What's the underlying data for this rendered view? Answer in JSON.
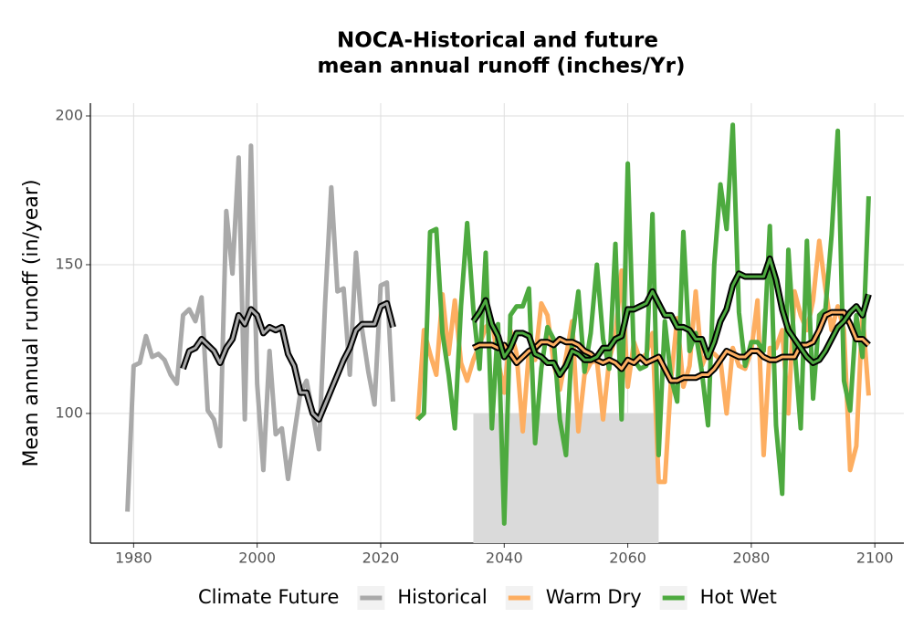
{
  "chart_data": {
    "type": "line",
    "title": [
      "NOCA-Historical and future",
      "mean annual runoff (inches/Yr)"
    ],
    "y_label": "Mean annual runoff (in/year)",
    "legend_title": "Climate Future",
    "legend_position": "bottom",
    "grid": true,
    "xlim": [
      1973,
      2104.7
    ],
    "ylim": [
      56.4,
      204.3
    ],
    "xticks": [
      1980,
      2000,
      2020,
      2040,
      2060,
      2080,
      2100
    ],
    "yticks": [
      100,
      150,
      200
    ],
    "band": {
      "from": 2035,
      "to": 2065,
      "top": 100,
      "color": "#dadada"
    },
    "series": [
      {
        "name": "Historical",
        "color": "#a9a9a9",
        "x": [
          1979,
          1980,
          1981,
          1982,
          1983,
          1984,
          1985,
          1986,
          1987,
          1988,
          1989,
          1990,
          1991,
          1992,
          1993,
          1994,
          1995,
          1996,
          1997,
          1998,
          1999,
          2000,
          2001,
          2002,
          2003,
          2004,
          2005,
          2006,
          2007,
          2008,
          2009,
          2010,
          2011,
          2012,
          2013,
          2014,
          2015,
          2016,
          2017,
          2018,
          2019,
          2020,
          2021,
          2022
        ],
        "values": [
          67,
          116,
          117,
          126,
          119,
          120,
          118,
          113,
          110,
          133,
          135,
          131,
          139,
          101,
          98,
          89,
          168,
          147,
          186,
          98,
          190,
          110,
          81,
          121,
          93,
          95,
          78,
          93,
          107,
          111,
          100,
          88,
          137,
          176,
          141,
          142,
          113,
          154,
          128,
          114,
          103,
          143,
          144,
          104
        ],
        "rolling": [
          null,
          null,
          null,
          null,
          null,
          null,
          null,
          null,
          null,
          115,
          121,
          122,
          125,
          123,
          121,
          117,
          122,
          125,
          133,
          130,
          135,
          133,
          127,
          129,
          128,
          129,
          120,
          116,
          107,
          107,
          100,
          98,
          103,
          108,
          113,
          118,
          122,
          128,
          130,
          130,
          130,
          136,
          137,
          129
        ]
      },
      {
        "name": "Warm Dry",
        "color": "#fdae61",
        "x": [
          2026,
          2027,
          2028,
          2029,
          2030,
          2031,
          2032,
          2033,
          2034,
          2035,
          2036,
          2037,
          2038,
          2039,
          2040,
          2041,
          2042,
          2043,
          2044,
          2045,
          2046,
          2047,
          2048,
          2049,
          2050,
          2051,
          2052,
          2053,
          2054,
          2055,
          2056,
          2057,
          2058,
          2059,
          2060,
          2061,
          2062,
          2063,
          2064,
          2065,
          2066,
          2067,
          2068,
          2069,
          2070,
          2071,
          2072,
          2073,
          2074,
          2075,
          2076,
          2077,
          2078,
          2079,
          2080,
          2081,
          2082,
          2083,
          2084,
          2085,
          2086,
          2087,
          2088,
          2089,
          2090,
          2091,
          2092,
          2093,
          2094,
          2095,
          2096,
          2097,
          2098,
          2099
        ],
        "values": [
          98,
          128,
          120,
          113,
          140,
          120,
          138,
          117,
          111,
          118,
          123,
          129,
          131,
          118,
          107,
          128,
          120,
          94,
          121,
          118,
          137,
          133,
          117,
          108,
          119,
          131,
          94,
          113,
          117,
          118,
          98,
          118,
          126,
          148,
          109,
          124,
          118,
          120,
          127,
          77,
          77,
          111,
          132,
          109,
          116,
          141,
          116,
          121,
          120,
          118,
          100,
          122,
          116,
          115,
          121,
          138,
          86,
          122,
          122,
          128,
          100,
          141,
          133,
          128,
          138,
          158,
          142,
          128,
          136,
          128,
          81,
          89,
          134,
          106
        ],
        "rolling": [
          null,
          null,
          null,
          null,
          null,
          null,
          null,
          null,
          null,
          122,
          123,
          123,
          123,
          122,
          123,
          120,
          117,
          119,
          121,
          122,
          124,
          124,
          123,
          125,
          124,
          124,
          123,
          121,
          120,
          118,
          117,
          118,
          117,
          115,
          118,
          117,
          119,
          117,
          118,
          119,
          115,
          111,
          111,
          112,
          112,
          112,
          113,
          113,
          115,
          118,
          121,
          120,
          119,
          119,
          121,
          121,
          119,
          118,
          118,
          119,
          119,
          119,
          123,
          123,
          124,
          128,
          133,
          134,
          134,
          134,
          130,
          125,
          125,
          123
        ]
      },
      {
        "name": "Hot Wet",
        "color": "#4daa3f",
        "x": [
          2026,
          2027,
          2028,
          2029,
          2030,
          2031,
          2032,
          2033,
          2034,
          2035,
          2036,
          2037,
          2038,
          2039,
          2040,
          2041,
          2042,
          2043,
          2044,
          2045,
          2046,
          2047,
          2048,
          2049,
          2050,
          2051,
          2052,
          2053,
          2054,
          2055,
          2056,
          2057,
          2058,
          2059,
          2060,
          2061,
          2062,
          2063,
          2064,
          2065,
          2066,
          2067,
          2068,
          2069,
          2070,
          2071,
          2072,
          2073,
          2074,
          2075,
          2076,
          2077,
          2078,
          2079,
          2080,
          2081,
          2082,
          2083,
          2084,
          2085,
          2086,
          2087,
          2088,
          2089,
          2090,
          2091,
          2092,
          2093,
          2094,
          2095,
          2096,
          2097,
          2098,
          2099
        ],
        "values": [
          98,
          100,
          161,
          162,
          127,
          113,
          95,
          136,
          164,
          135,
          115,
          154,
          95,
          130,
          63,
          133,
          136,
          136,
          142,
          90,
          115,
          129,
          125,
          98,
          86,
          125,
          141,
          114,
          127,
          150,
          125,
          115,
          157,
          98,
          184,
          118,
          115,
          116,
          167,
          86,
          131,
          112,
          104,
          161,
          121,
          127,
          114,
          96,
          150,
          177,
          162,
          197,
          134,
          116,
          124,
          124,
          121,
          163,
          96,
          73,
          155,
          122,
          95,
          158,
          105,
          133,
          135,
          160,
          195,
          111,
          101,
          133,
          119,
          173
        ],
        "rolling": [
          null,
          null,
          null,
          null,
          null,
          null,
          null,
          null,
          null,
          131,
          134,
          138,
          130,
          126,
          119,
          122,
          127,
          127,
          126,
          120,
          119,
          117,
          117,
          113,
          116,
          121,
          120,
          118,
          118,
          119,
          122,
          122,
          125,
          126,
          135,
          135,
          136,
          137,
          141,
          137,
          133,
          133,
          129,
          129,
          128,
          125,
          125,
          119,
          124,
          131,
          135,
          143,
          147,
          146,
          146,
          146,
          146,
          152,
          145,
          135,
          128,
          125,
          122,
          119,
          117,
          118,
          121,
          125,
          129,
          131,
          134,
          136,
          133,
          140
        ]
      }
    ]
  }
}
